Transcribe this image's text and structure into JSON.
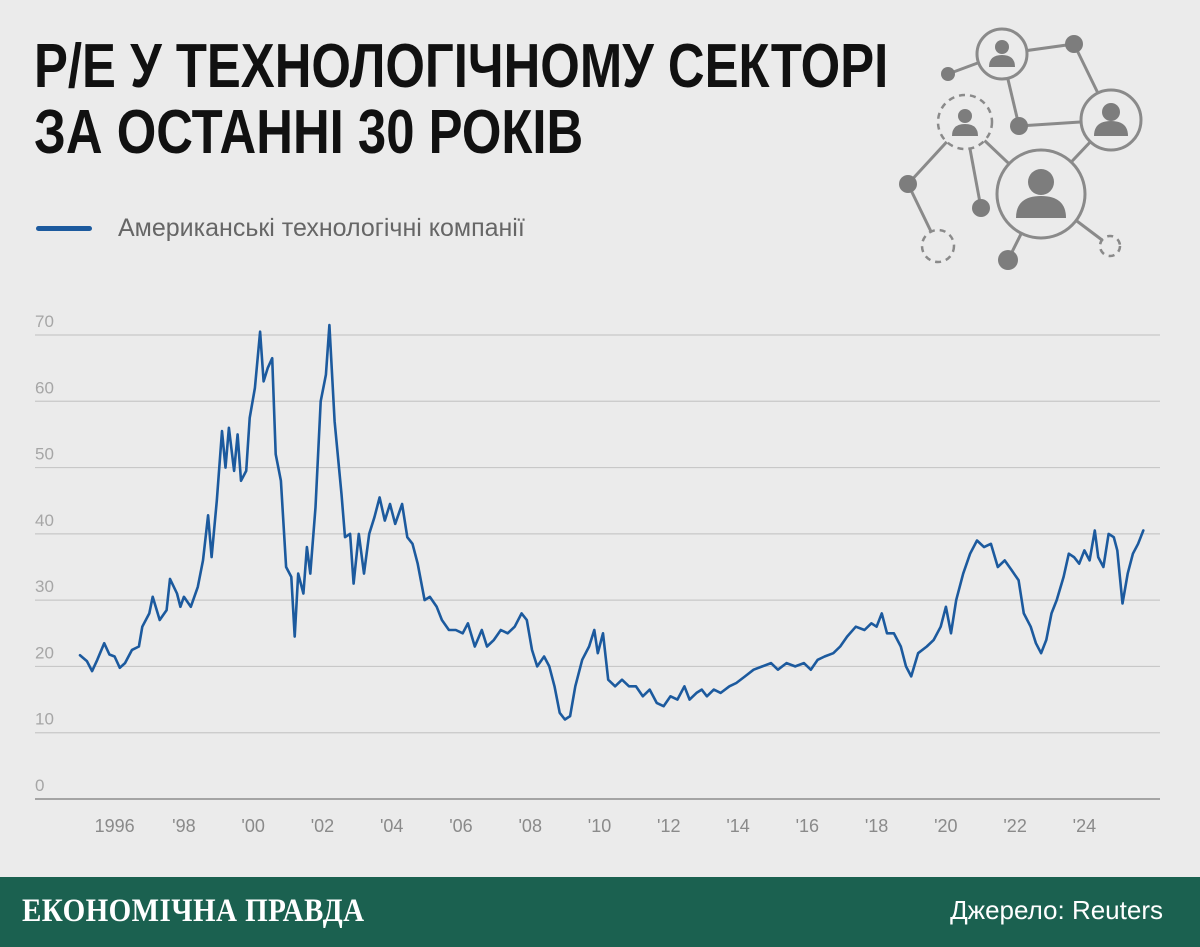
{
  "title": {
    "line1": "P/E У ТЕХНОЛОГІЧНОМУ СЕКТОРІ",
    "line2": "ЗА ОСТАННІ 30 РОКІВ"
  },
  "footer": {
    "brand": "ЕКОНОМІЧНА ПРАВДА",
    "source": "Джерело: Reuters"
  },
  "colors": {
    "background": "#ebebeb",
    "line": "#1c5a9e",
    "footer": "#1b6150",
    "grid": "#c8c8c8"
  },
  "decoration": {
    "icon": "network-people-icon"
  },
  "chart_data": {
    "type": "line",
    "legend_placement": "top-left",
    "grid": true,
    "ylim": [
      0,
      70
    ],
    "yticks": [
      "0",
      "10",
      "20",
      "30",
      "40",
      "50",
      "60",
      "70"
    ],
    "xlim": [
      1995.0,
      2025.75
    ],
    "xticks": [
      {
        "x": 1996,
        "label": "1996"
      },
      {
        "x": 1998,
        "label": "'98"
      },
      {
        "x": 2000,
        "label": "'00"
      },
      {
        "x": 2002,
        "label": "'02"
      },
      {
        "x": 2004,
        "label": "'04"
      },
      {
        "x": 2006,
        "label": "'06"
      },
      {
        "x": 2008,
        "label": "'08"
      },
      {
        "x": 2010,
        "label": "'10"
      },
      {
        "x": 2012,
        "label": "'12"
      },
      {
        "x": 2014,
        "label": "'14"
      },
      {
        "x": 2016,
        "label": "'16"
      },
      {
        "x": 2018,
        "label": "'18"
      },
      {
        "x": 2020,
        "label": "'20"
      },
      {
        "x": 2022,
        "label": "'22"
      },
      {
        "x": 2024,
        "label": "'24"
      }
    ],
    "series": [
      {
        "name": "Американські технологічні компанії",
        "points": [
          [
            1995.0,
            21.7
          ],
          [
            1995.2,
            20.8
          ],
          [
            1995.35,
            19.3
          ],
          [
            1995.5,
            21.0
          ],
          [
            1995.7,
            23.5
          ],
          [
            1995.85,
            21.8
          ],
          [
            1996.0,
            21.5
          ],
          [
            1996.15,
            19.8
          ],
          [
            1996.3,
            20.5
          ],
          [
            1996.5,
            22.5
          ],
          [
            1996.7,
            23.0
          ],
          [
            1996.8,
            26.0
          ],
          [
            1997.0,
            28.0
          ],
          [
            1997.1,
            30.5
          ],
          [
            1997.3,
            27.0
          ],
          [
            1997.5,
            28.5
          ],
          [
            1997.6,
            33.2
          ],
          [
            1997.8,
            31.0
          ],
          [
            1997.9,
            29.0
          ],
          [
            1998.0,
            30.5
          ],
          [
            1998.2,
            29.0
          ],
          [
            1998.4,
            32.0
          ],
          [
            1998.55,
            36.0
          ],
          [
            1998.7,
            42.8
          ],
          [
            1998.8,
            36.5
          ],
          [
            1998.95,
            45.0
          ],
          [
            1999.1,
            55.5
          ],
          [
            1999.2,
            50.0
          ],
          [
            1999.3,
            56.0
          ],
          [
            1999.45,
            49.5
          ],
          [
            1999.55,
            55.0
          ],
          [
            1999.65,
            48.0
          ],
          [
            1999.8,
            49.5
          ],
          [
            1999.9,
            57.5
          ],
          [
            2000.05,
            62.0
          ],
          [
            2000.2,
            70.5
          ],
          [
            2000.3,
            63.0
          ],
          [
            2000.42,
            65.0
          ],
          [
            2000.55,
            66.5
          ],
          [
            2000.65,
            52.0
          ],
          [
            2000.8,
            48.0
          ],
          [
            2000.95,
            35.0
          ],
          [
            2001.1,
            33.5
          ],
          [
            2001.2,
            24.5
          ],
          [
            2001.3,
            34.0
          ],
          [
            2001.45,
            31.0
          ],
          [
            2001.55,
            38.0
          ],
          [
            2001.65,
            34.0
          ],
          [
            2001.8,
            44.0
          ],
          [
            2001.95,
            60.0
          ],
          [
            2002.1,
            64.0
          ],
          [
            2002.2,
            71.5
          ],
          [
            2002.35,
            57.0
          ],
          [
            2002.55,
            46.0
          ],
          [
            2002.65,
            39.5
          ],
          [
            2002.8,
            40.0
          ],
          [
            2002.9,
            32.5
          ],
          [
            2003.05,
            40.0
          ],
          [
            2003.2,
            34.0
          ],
          [
            2003.35,
            40.0
          ],
          [
            2003.5,
            42.5
          ],
          [
            2003.65,
            45.5
          ],
          [
            2003.8,
            42.0
          ],
          [
            2003.95,
            44.5
          ],
          [
            2004.1,
            41.5
          ],
          [
            2004.3,
            44.5
          ],
          [
            2004.45,
            39.5
          ],
          [
            2004.6,
            38.5
          ],
          [
            2004.75,
            35.5
          ],
          [
            2004.95,
            30.0
          ],
          [
            2005.1,
            30.5
          ],
          [
            2005.3,
            29.0
          ],
          [
            2005.45,
            27.0
          ],
          [
            2005.65,
            25.5
          ],
          [
            2005.85,
            25.5
          ],
          [
            2006.05,
            25.0
          ],
          [
            2006.2,
            26.5
          ],
          [
            2006.4,
            23.0
          ],
          [
            2006.6,
            25.5
          ],
          [
            2006.75,
            23.0
          ],
          [
            2006.95,
            24.0
          ],
          [
            2007.15,
            25.5
          ],
          [
            2007.35,
            25.0
          ],
          [
            2007.55,
            26.0
          ],
          [
            2007.75,
            28.0
          ],
          [
            2007.9,
            27.0
          ],
          [
            2008.05,
            22.5
          ],
          [
            2008.2,
            20.0
          ],
          [
            2008.4,
            21.5
          ],
          [
            2008.55,
            20.0
          ],
          [
            2008.7,
            17.0
          ],
          [
            2008.85,
            13.0
          ],
          [
            2009.0,
            12.0
          ],
          [
            2009.15,
            12.5
          ],
          [
            2009.3,
            17.0
          ],
          [
            2009.5,
            21.0
          ],
          [
            2009.7,
            23.0
          ],
          [
            2009.85,
            25.5
          ],
          [
            2009.95,
            22.0
          ],
          [
            2010.1,
            25.0
          ],
          [
            2010.25,
            18.0
          ],
          [
            2010.45,
            17.0
          ],
          [
            2010.65,
            18.0
          ],
          [
            2010.85,
            17.0
          ],
          [
            2011.05,
            17.0
          ],
          [
            2011.25,
            15.5
          ],
          [
            2011.45,
            16.5
          ],
          [
            2011.65,
            14.5
          ],
          [
            2011.85,
            14.0
          ],
          [
            2012.05,
            15.5
          ],
          [
            2012.25,
            15.0
          ],
          [
            2012.45,
            17.0
          ],
          [
            2012.6,
            15.0
          ],
          [
            2012.8,
            16.0
          ],
          [
            2012.95,
            16.5
          ],
          [
            2013.1,
            15.5
          ],
          [
            2013.3,
            16.5
          ],
          [
            2013.5,
            16.0
          ],
          [
            2013.75,
            17.0
          ],
          [
            2013.95,
            17.5
          ],
          [
            2014.2,
            18.5
          ],
          [
            2014.45,
            19.5
          ],
          [
            2014.7,
            20.0
          ],
          [
            2014.95,
            20.5
          ],
          [
            2015.15,
            19.5
          ],
          [
            2015.4,
            20.5
          ],
          [
            2015.65,
            20.0
          ],
          [
            2015.9,
            20.5
          ],
          [
            2016.1,
            19.5
          ],
          [
            2016.3,
            21.0
          ],
          [
            2016.5,
            21.5
          ],
          [
            2016.75,
            22.0
          ],
          [
            2016.95,
            23.0
          ],
          [
            2017.15,
            24.5
          ],
          [
            2017.4,
            26.0
          ],
          [
            2017.65,
            25.5
          ],
          [
            2017.85,
            26.5
          ],
          [
            2018.0,
            26.0
          ],
          [
            2018.15,
            28.0
          ],
          [
            2018.3,
            25.0
          ],
          [
            2018.5,
            25.0
          ],
          [
            2018.7,
            23.0
          ],
          [
            2018.85,
            20.0
          ],
          [
            2019.0,
            18.5
          ],
          [
            2019.2,
            22.0
          ],
          [
            2019.45,
            23.0
          ],
          [
            2019.65,
            24.0
          ],
          [
            2019.85,
            26.0
          ],
          [
            2020.0,
            29.0
          ],
          [
            2020.15,
            25.0
          ],
          [
            2020.3,
            30.0
          ],
          [
            2020.5,
            34.0
          ],
          [
            2020.7,
            37.0
          ],
          [
            2020.9,
            39.0
          ],
          [
            2021.1,
            38.0
          ],
          [
            2021.3,
            38.5
          ],
          [
            2021.5,
            35.0
          ],
          [
            2021.7,
            36.0
          ],
          [
            2021.9,
            34.5
          ],
          [
            2022.1,
            33.0
          ],
          [
            2022.25,
            28.0
          ],
          [
            2022.45,
            26.0
          ],
          [
            2022.6,
            23.5
          ],
          [
            2022.75,
            22.0
          ],
          [
            2022.9,
            24.0
          ],
          [
            2023.05,
            28.0
          ],
          [
            2023.2,
            30.0
          ],
          [
            2023.4,
            33.5
          ],
          [
            2023.55,
            37.0
          ],
          [
            2023.7,
            36.5
          ],
          [
            2023.85,
            35.5
          ],
          [
            2024.0,
            37.5
          ],
          [
            2024.15,
            36.0
          ],
          [
            2024.3,
            40.5
          ],
          [
            2024.4,
            36.5
          ],
          [
            2024.55,
            35.0
          ],
          [
            2024.7,
            40.0
          ],
          [
            2024.85,
            39.5
          ],
          [
            2024.95,
            37.5
          ],
          [
            2025.1,
            29.5
          ],
          [
            2025.25,
            34.0
          ],
          [
            2025.4,
            37.0
          ],
          [
            2025.55,
            38.5
          ],
          [
            2025.7,
            40.5
          ]
        ]
      }
    ]
  }
}
